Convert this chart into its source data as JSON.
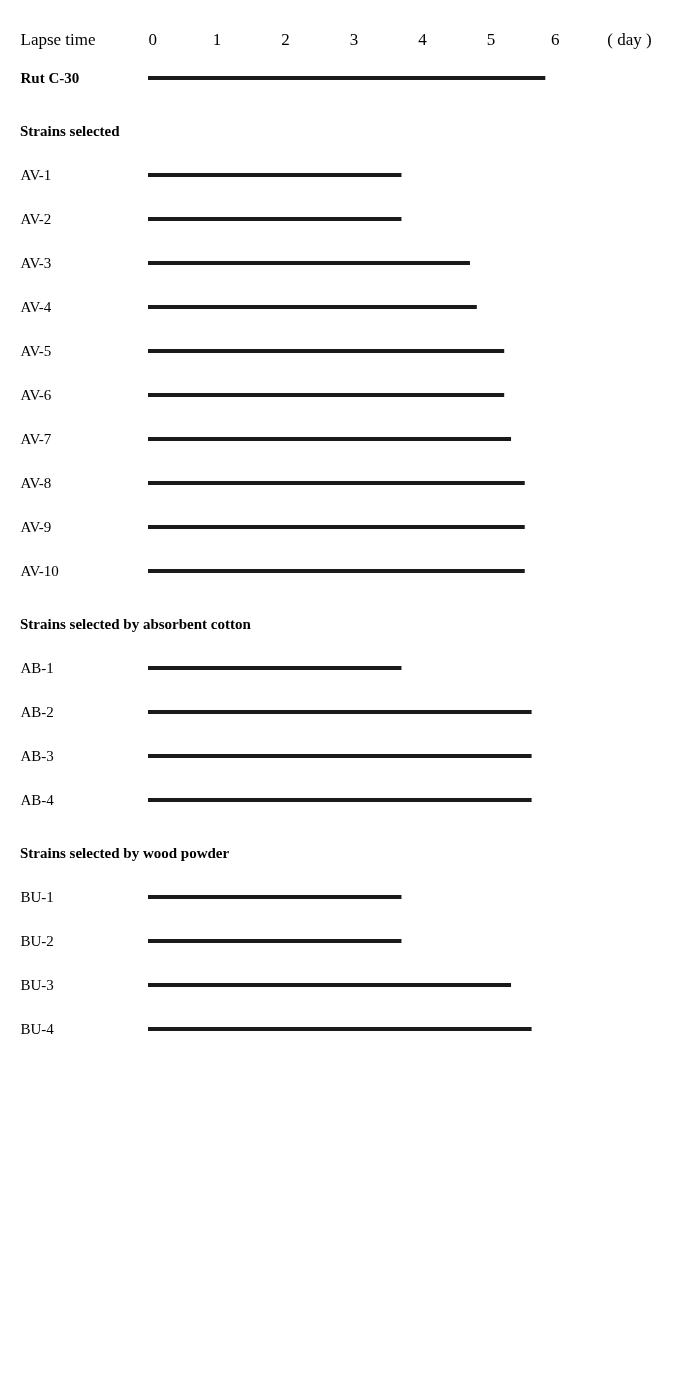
{
  "chart_data": [
    {
      "type": "bar",
      "orientation": "horizontal",
      "ylabel": "Lapse time",
      "xlabel": "( day )",
      "categories": [
        "Rut C-30"
      ],
      "values": [
        5.8
      ],
      "color": "#1a1a1a",
      "xlim": [
        0,
        6
      ],
      "xticks": [
        0,
        1,
        2,
        3,
        4,
        5,
        6
      ],
      "grid": false
    },
    {
      "type": "bar",
      "orientation": "horizontal",
      "title": "Strains selected",
      "categories": [
        "AV-1",
        "AV-2",
        "AV-3",
        "AV-4",
        "AV-5",
        "AV-6",
        "AV-7",
        "AV-8",
        "AV-9",
        "AV-10"
      ],
      "values": [
        3.7,
        3.7,
        4.7,
        4.8,
        5.2,
        5.2,
        5.3,
        5.5,
        5.5,
        5.5
      ],
      "color": "#1a1a1a",
      "xlim": [
        0,
        6
      ],
      "xticks": [
        0,
        1,
        2,
        3,
        4,
        5,
        6
      ],
      "tick_labels": "y",
      "grid": false
    },
    {
      "type": "bar",
      "orientation": "horizontal",
      "title": "Strains selected by absorbent cotton",
      "categories": [
        "AB-1",
        "AB-2",
        "AB-3",
        "AB-4"
      ],
      "values": [
        3.7,
        5.6,
        5.6,
        5.6
      ],
      "color": "#1a1a1a",
      "xlim": [
        0,
        6
      ],
      "xticks": [
        0,
        1,
        2,
        3,
        4,
        5,
        6
      ],
      "tick_labels": "y",
      "grid": false
    },
    {
      "type": "bar",
      "orientation": "horizontal",
      "title": "Strains selected by wood powder",
      "categories": [
        "BU-1",
        "BU-2",
        "BU-3",
        "BU-4"
      ],
      "values": [
        3.7,
        3.7,
        5.3,
        5.6
      ],
      "color": "#1a1a1a",
      "xlim": [
        0,
        6
      ],
      "xticks": [
        0,
        1,
        2,
        3,
        4,
        5,
        6
      ],
      "tick_labels": "y",
      "grid": false
    }
  ]
}
